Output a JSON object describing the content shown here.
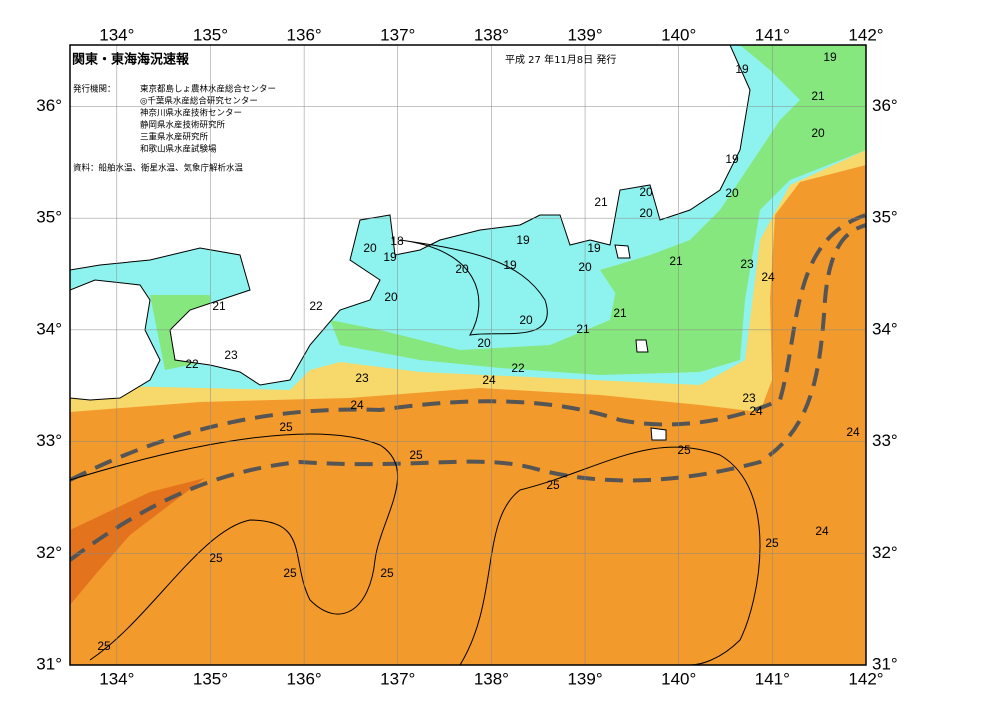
{
  "map": {
    "title": "関東・東海海況速報",
    "issued": "平成 27 年11月8日 発行",
    "agencies_label": "発行機関：",
    "agencies": [
      "東京都島しょ農林水産総合センター",
      "◎千葉県水産総合研究センター",
      "神奈川県水産技術センター",
      "静岡県水産技術研究所",
      "三重県水産研究所",
      "和歌山県水産試験場"
    ],
    "source": "資料：船舶水温、衛星水温、気象庁解析水温",
    "lon_range": [
      133.5,
      142
    ],
    "lat_range": [
      31,
      36.55
    ],
    "lon_ticks": [
      {
        "value": 134,
        "label": "134°"
      },
      {
        "value": 135,
        "label": "135°"
      },
      {
        "value": 136,
        "label": "136°"
      },
      {
        "value": 137,
        "label": "137°"
      },
      {
        "value": 138,
        "label": "138°"
      },
      {
        "value": 139,
        "label": "139°"
      },
      {
        "value": 140,
        "label": "140°"
      },
      {
        "value": 141,
        "label": "141°"
      },
      {
        "value": 142,
        "label": "142°"
      }
    ],
    "lat_ticks": [
      {
        "value": 31,
        "label": "31°"
      },
      {
        "value": 32,
        "label": "32°"
      },
      {
        "value": 33,
        "label": "33°"
      },
      {
        "value": 34,
        "label": "34°"
      },
      {
        "value": 35,
        "label": "35°"
      },
      {
        "value": 36,
        "label": "36°"
      }
    ],
    "contour_labels": [
      19,
      19,
      21,
      20,
      19,
      20,
      20,
      20,
      21,
      20,
      18,
      19,
      19,
      19,
      19,
      20,
      20,
      21,
      23,
      24,
      22,
      20,
      21,
      21,
      20,
      21,
      23,
      20,
      22,
      22,
      23,
      24,
      24,
      23,
      24,
      25,
      24,
      25,
      25,
      25,
      24,
      25,
      25,
      25,
      25,
      25
    ]
  }
}
